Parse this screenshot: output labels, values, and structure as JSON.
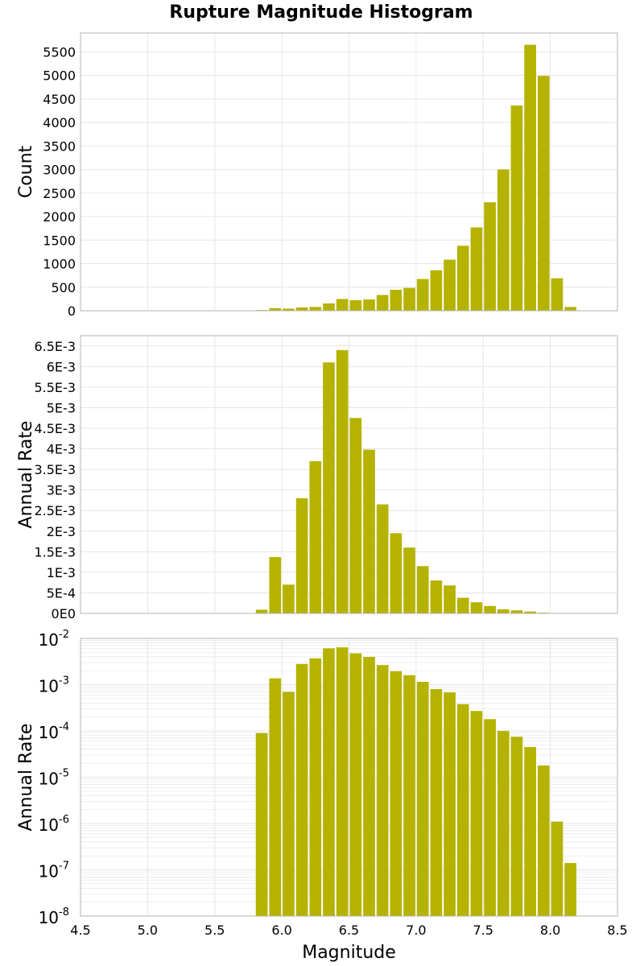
{
  "title": "Rupture Magnitude Histogram",
  "chart_data": [
    {
      "type": "bar",
      "ylabel": "Count",
      "xlim": [
        4.5,
        8.5
      ],
      "ylim": [
        0,
        5900
      ],
      "y_ticks": [
        0,
        500,
        1000,
        1500,
        2000,
        2500,
        3000,
        3500,
        4000,
        4500,
        5000,
        5500
      ],
      "y_tick_labels": [
        "0",
        "500",
        "1000",
        "1500",
        "2000",
        "2500",
        "3000",
        "3500",
        "4000",
        "4500",
        "5000",
        "5500"
      ],
      "bin_width": 0.1,
      "x": [
        5.85,
        5.95,
        6.05,
        6.15,
        6.25,
        6.35,
        6.45,
        6.55,
        6.65,
        6.75,
        6.85,
        6.95,
        7.05,
        7.15,
        7.25,
        7.35,
        7.45,
        7.55,
        7.65,
        7.75,
        7.85,
        7.95,
        8.05,
        8.15
      ],
      "values": [
        15,
        55,
        45,
        70,
        80,
        155,
        250,
        225,
        240,
        335,
        445,
        485,
        675,
        860,
        1085,
        1380,
        1770,
        2305,
        3000,
        4360,
        5650,
        4990,
        690,
        80
      ],
      "color": "#b5b300",
      "grid": true
    },
    {
      "type": "bar",
      "ylabel": "Annual Rate",
      "xlim": [
        4.5,
        8.5
      ],
      "ylim": [
        0,
        0.00675
      ],
      "y_ticks": [
        0,
        0.0005,
        0.001,
        0.0015,
        0.002,
        0.0025,
        0.003,
        0.0035,
        0.004,
        0.0045,
        0.005,
        0.0055,
        0.006,
        0.0065
      ],
      "y_tick_labels": [
        "0E0",
        "5E-4",
        "1E-3",
        "1.5E-3",
        "2E-3",
        "2.5E-3",
        "3E-3",
        "3.5E-3",
        "4E-3",
        "4.5E-3",
        "5E-3",
        "5.5E-3",
        "6E-3",
        "6.5E-3"
      ],
      "bin_width": 0.1,
      "x": [
        5.85,
        5.95,
        6.05,
        6.15,
        6.25,
        6.35,
        6.45,
        6.55,
        6.65,
        6.75,
        6.85,
        6.95,
        7.05,
        7.15,
        7.25,
        7.35,
        7.45,
        7.55,
        7.65,
        7.75,
        7.85,
        7.95,
        8.05,
        8.15
      ],
      "values": [
        9e-05,
        0.00137,
        0.0007,
        0.0028,
        0.0037,
        0.0061,
        0.0064,
        0.00475,
        0.00398,
        0.00265,
        0.00195,
        0.0016,
        0.00115,
        0.0008,
        0.00068,
        0.00038,
        0.00027,
        0.00018,
        0.0001,
        7.5e-05,
        4.5e-05,
        1.8e-05,
        1.1e-06,
        1.4e-07
      ],
      "color": "#b5b300",
      "grid": true
    },
    {
      "type": "bar",
      "ylabel": "Annual Rate",
      "xlabel": "Magnitude",
      "xlim": [
        4.5,
        8.5
      ],
      "y_scale": "log",
      "ylim": [
        1e-08,
        0.01
      ],
      "y_tick_exponents": [
        -8,
        -7,
        -6,
        -5,
        -4,
        -3,
        -2
      ],
      "x_ticks": [
        4.5,
        5.0,
        5.5,
        6.0,
        6.5,
        7.0,
        7.5,
        8.0,
        8.5
      ],
      "x_tick_labels": [
        "4.5",
        "5.0",
        "5.5",
        "6.0",
        "6.5",
        "7.0",
        "7.5",
        "8.0",
        "8.5"
      ],
      "bin_width": 0.1,
      "x": [
        5.85,
        5.95,
        6.05,
        6.15,
        6.25,
        6.35,
        6.45,
        6.55,
        6.65,
        6.75,
        6.85,
        6.95,
        7.05,
        7.15,
        7.25,
        7.35,
        7.45,
        7.55,
        7.65,
        7.75,
        7.85,
        7.95,
        8.05,
        8.15
      ],
      "values": [
        9e-05,
        0.00137,
        0.0007,
        0.0028,
        0.0037,
        0.0061,
        0.0064,
        0.00475,
        0.00398,
        0.00265,
        0.00195,
        0.0016,
        0.00115,
        0.0008,
        0.00068,
        0.00038,
        0.00027,
        0.00018,
        0.0001,
        7.5e-05,
        4.5e-05,
        1.8e-05,
        1.1e-06,
        1.4e-07
      ],
      "color": "#b5b300",
      "grid": true
    }
  ]
}
